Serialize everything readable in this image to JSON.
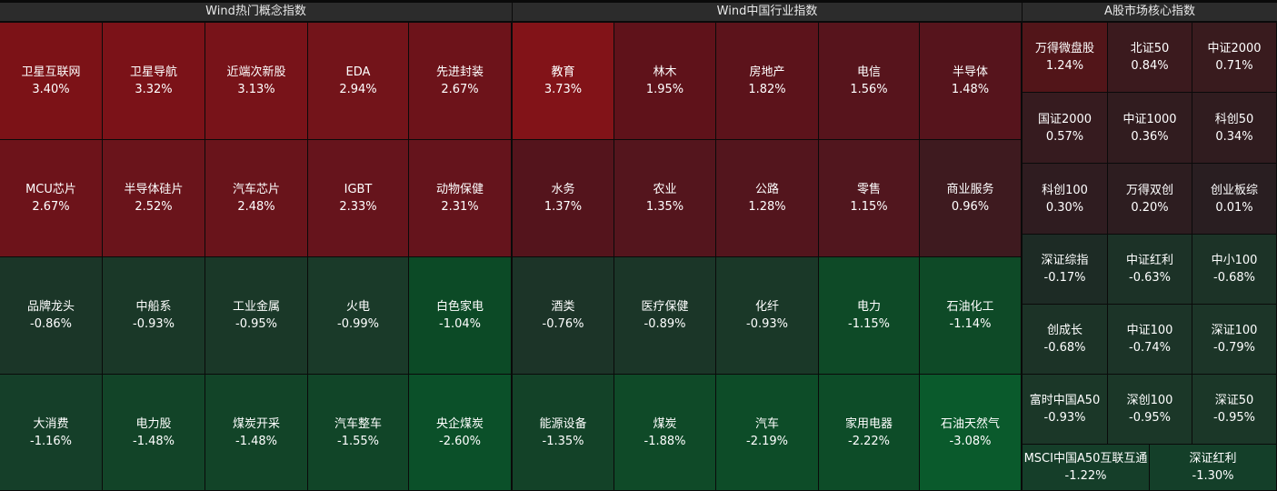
{
  "panels": [
    {
      "title": "Wind热门概念指数",
      "cols": 5,
      "rows": [
        [
          {
            "name": "卫星互联网",
            "pct": "3.40%",
            "color": "#7c1217"
          },
          {
            "name": "卫星导航",
            "pct": "3.32%",
            "color": "#7b1218"
          },
          {
            "name": "近端次新股",
            "pct": "3.13%",
            "color": "#781319"
          },
          {
            "name": "EDA",
            "pct": "2.94%",
            "color": "#73141a"
          },
          {
            "name": "先进封装",
            "pct": "2.67%",
            "color": "#6d131a"
          }
        ],
        [
          {
            "name": "MCU芯片",
            "pct": "2.67%",
            "color": "#6d131a"
          },
          {
            "name": "半导体硅片",
            "pct": "2.52%",
            "color": "#6a141b"
          },
          {
            "name": "汽车芯片",
            "pct": "2.48%",
            "color": "#69141b"
          },
          {
            "name": "IGBT",
            "pct": "2.33%",
            "color": "#66141c"
          },
          {
            "name": "动物保健",
            "pct": "2.31%",
            "color": "#65141c"
          }
        ],
        [
          {
            "name": "品牌龙头",
            "pct": "-0.86%",
            "color": "#1b3628"
          },
          {
            "name": "中船系",
            "pct": "-0.93%",
            "color": "#1a3828"
          },
          {
            "name": "工业金属",
            "pct": "-0.95%",
            "color": "#1a3828"
          },
          {
            "name": "火电",
            "pct": "-0.99%",
            "color": "#1a3a29"
          },
          {
            "name": "白色家电",
            "pct": "-1.04%",
            "color": "#0c4a26"
          }
        ],
        [
          {
            "name": "大消费",
            "pct": "-1.16%",
            "color": "#153f29"
          },
          {
            "name": "电力股",
            "pct": "-1.48%",
            "color": "#124428"
          },
          {
            "name": "煤炭开采",
            "pct": "-1.48%",
            "color": "#124428"
          },
          {
            "name": "汽车整车",
            "pct": "-1.55%",
            "color": "#114528"
          },
          {
            "name": "央企煤炭",
            "pct": "-2.60%",
            "color": "#0b5029"
          }
        ]
      ]
    },
    {
      "title": "Wind中国行业指数",
      "cols": 5,
      "rows": [
        [
          {
            "name": "教育",
            "pct": "3.73%",
            "color": "#821318"
          },
          {
            "name": "林木",
            "pct": "1.95%",
            "color": "#5f121a"
          },
          {
            "name": "房地产",
            "pct": "1.82%",
            "color": "#5c131b"
          },
          {
            "name": "电信",
            "pct": "1.56%",
            "color": "#57141c"
          },
          {
            "name": "半导体",
            "pct": "1.48%",
            "color": "#56141c"
          }
        ],
        [
          {
            "name": "水务",
            "pct": "1.37%",
            "color": "#54141c"
          },
          {
            "name": "农业",
            "pct": "1.35%",
            "color": "#54151d"
          },
          {
            "name": "公路",
            "pct": "1.28%",
            "color": "#53151d"
          },
          {
            "name": "零售",
            "pct": "1.15%",
            "color": "#51161e"
          },
          {
            "name": "商业服务",
            "pct": "0.96%",
            "color": "#3e1a1f"
          }
        ],
        [
          {
            "name": "酒类",
            "pct": "-0.76%",
            "color": "#1c3428"
          },
          {
            "name": "医疗保健",
            "pct": "-0.89%",
            "color": "#1b3628"
          },
          {
            "name": "化纤",
            "pct": "-0.93%",
            "color": "#1a3828"
          },
          {
            "name": "电力",
            "pct": "-1.15%",
            "color": "#0e4a27"
          },
          {
            "name": "石油化工",
            "pct": "-1.14%",
            "color": "#0e4a27"
          }
        ],
        [
          {
            "name": "能源设备",
            "pct": "-1.35%",
            "color": "#134228"
          },
          {
            "name": "煤炭",
            "pct": "-1.88%",
            "color": "#0f4a28"
          },
          {
            "name": "汽车",
            "pct": "-2.19%",
            "color": "#0d4c28"
          },
          {
            "name": "家用电器",
            "pct": "-2.22%",
            "color": "#0d4c28"
          },
          {
            "name": "石油天然气",
            "pct": "-3.08%",
            "color": "#0a5a2c"
          }
        ]
      ]
    },
    {
      "title": "A股市场核心指数",
      "cols": 3,
      "rows": [
        [
          {
            "name": "万得微盘股",
            "pct": "1.24%",
            "color": "#521519"
          },
          {
            "name": "北证50",
            "pct": "0.84%",
            "color": "#3b1a1e"
          },
          {
            "name": "中证2000",
            "pct": "0.71%",
            "color": "#391b1e"
          }
        ],
        [
          {
            "name": "国证2000",
            "pct": "0.57%",
            "color": "#361b1f"
          },
          {
            "name": "中证1000",
            "pct": "0.36%",
            "color": "#311c1f"
          },
          {
            "name": "科创50",
            "pct": "0.34%",
            "color": "#301c1f"
          }
        ],
        [
          {
            "name": "科创100",
            "pct": "0.30%",
            "color": "#2f1c20"
          },
          {
            "name": "万得双创",
            "pct": "0.20%",
            "color": "#2d1d20"
          },
          {
            "name": "创业板综",
            "pct": "0.01%",
            "color": "#291e21"
          }
        ],
        [
          {
            "name": "深证综指",
            "pct": "-0.17%",
            "color": "#1d2b25"
          },
          {
            "name": "中证红利",
            "pct": "-0.63%",
            "color": "#1c3227"
          },
          {
            "name": "中小100",
            "pct": "-0.68%",
            "color": "#1c3327"
          }
        ],
        [
          {
            "name": "创成长",
            "pct": "-0.68%",
            "color": "#1c3327"
          },
          {
            "name": "中证100",
            "pct": "-0.74%",
            "color": "#1c3428"
          },
          {
            "name": "深证100",
            "pct": "-0.79%",
            "color": "#1c3528"
          }
        ],
        [
          {
            "name": "富时中国A50",
            "pct": "-0.93%",
            "color": "#1b3728"
          },
          {
            "name": "深创100",
            "pct": "-0.95%",
            "color": "#1b3728"
          },
          {
            "name": "深证50",
            "pct": "-0.95%",
            "color": "#1b3728"
          }
        ],
        [
          {
            "name": "MSCI中国A50互联互通",
            "pct": "-1.22%",
            "color": "#153e29"
          },
          {
            "name": "深证红利",
            "pct": "-1.30%",
            "color": "#143f29"
          }
        ]
      ]
    }
  ]
}
